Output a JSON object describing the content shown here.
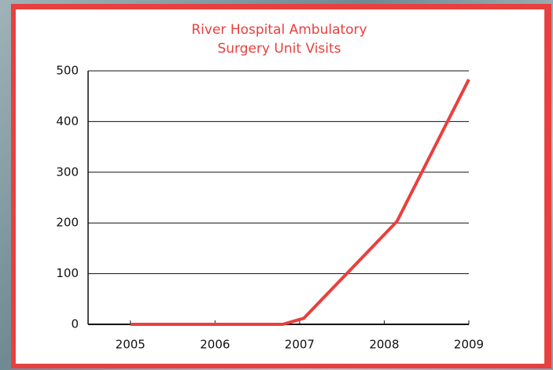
{
  "chart_data": {
    "type": "line",
    "title": [
      "River Hospital Ambulatory",
      "Surgery Unit Visits"
    ],
    "x": [
      2005,
      2006.8,
      2007.05,
      2008.15,
      2009
    ],
    "series": [
      {
        "name": null,
        "color": "#e8403f",
        "values": [
          0,
          0,
          12,
          203,
          483
        ]
      }
    ],
    "xlim": [
      2004.5,
      2009
    ],
    "xticks": [
      2005,
      2006,
      2007,
      2008,
      2009
    ],
    "ylim": [
      0,
      500
    ],
    "yticks": [
      0,
      100,
      200,
      300,
      400,
      500
    ],
    "grid": true
  }
}
